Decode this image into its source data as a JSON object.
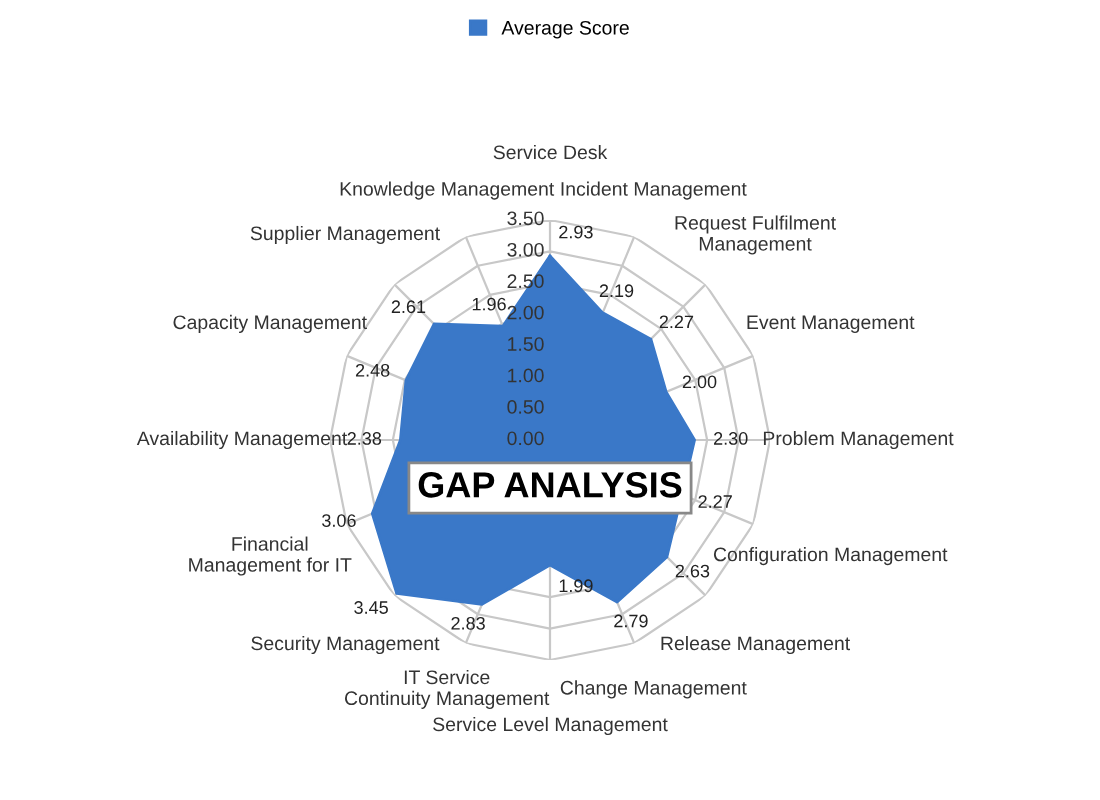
{
  "chart_data": {
    "type": "radar",
    "categories": [
      "Service Desk",
      "Incident Management",
      "Request Fulfilment Management",
      "Event Management",
      "Problem Management",
      "Configuration Management",
      "Release Management",
      "Change Management",
      "Service Level Management",
      "IT Service Continuity Management",
      "Security Management",
      "Financial Management for IT",
      "Availability Management",
      "Capacity Management",
      "Supplier Management",
      "Knowledge Management"
    ],
    "series": [
      {
        "name": "Average Score",
        "color": "#3a78c8",
        "values": [
          2.93,
          2.19,
          2.27,
          2.0,
          2.3,
          2.27,
          2.63,
          2.79,
          1.99,
          2.83,
          3.45,
          3.06,
          2.38,
          2.48,
          2.61,
          1.96
        ]
      }
    ],
    "ylim": [
      0,
      3.5
    ],
    "yticks": [
      {
        "value": 0,
        "label": "0.00"
      },
      {
        "value": 0.5,
        "label": "0.50"
      },
      {
        "value": 1,
        "label": "1.00"
      },
      {
        "value": 1.5,
        "label": "1.50"
      },
      {
        "value": 2,
        "label": "2.00"
      },
      {
        "value": 2.5,
        "label": "2.50"
      },
      {
        "value": 3,
        "label": "3.00"
      },
      {
        "value": 3.5,
        "label": "3.50"
      }
    ],
    "value_labels": [
      "2.93",
      "2.19",
      "2.27",
      "2.00",
      "2.30",
      "2.27",
      "2.63",
      "2.79",
      "1.99",
      "2.83",
      "3.45",
      "3.06",
      "2.38",
      "2.48",
      "2.61",
      "1.96"
    ],
    "grid": true,
    "legend": "top",
    "annotations": [
      "GAP ANALYSIS"
    ]
  }
}
